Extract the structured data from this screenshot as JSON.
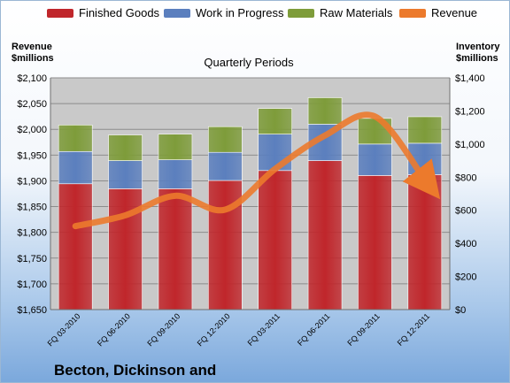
{
  "legend": [
    {
      "label": "Finished Goods",
      "color": "#c0262b"
    },
    {
      "label": "Work in Progress",
      "color": "#5b7fbe"
    },
    {
      "label": "Raw Materials",
      "color": "#7e9c3a"
    },
    {
      "label": "Revenue",
      "color": "#ec7a2c"
    }
  ],
  "left_axis_title": [
    "Revenue",
    "$millions"
  ],
  "right_axis_title": [
    "Inventory",
    "$millions"
  ],
  "chart_title": "Quarterly Periods",
  "footer_title": "Becton, Dickinson and",
  "chart_data": {
    "type": "bar",
    "subtype": "stacked-bar with line overlay",
    "title": "Quarterly Periods",
    "categories": [
      "FQ 03-2010",
      "FQ 06-2010",
      "FQ 09-2010",
      "FQ 12-2010",
      "FQ 03-2011",
      "FQ 06-2011",
      "FQ 09-2011",
      "FQ 12-2011"
    ],
    "series": [
      {
        "name": "Finished Goods",
        "axis": "right",
        "color": "#c0262b",
        "values": [
          760,
          730,
          730,
          780,
          840,
          900,
          810,
          815
        ]
      },
      {
        "name": "Work in Progress",
        "axis": "right",
        "color": "#5b7fbe",
        "values": [
          195,
          170,
          175,
          170,
          220,
          220,
          190,
          190
        ]
      },
      {
        "name": "Raw Materials",
        "axis": "right",
        "color": "#7e9c3a",
        "values": [
          160,
          155,
          155,
          155,
          155,
          160,
          155,
          160
        ]
      },
      {
        "name": "Revenue",
        "axis": "left",
        "type": "line",
        "color": "#ec7a2c",
        "values": [
          1812,
          1833,
          1871,
          1844,
          1923,
          1988,
          2025,
          1902
        ]
      }
    ],
    "left_axis": {
      "ylim": [
        1650,
        2100
      ],
      "ticks": [
        "$1,650",
        "$1,700",
        "$1,750",
        "$1,800",
        "$1,850",
        "$1,900",
        "$1,950",
        "$2,000",
        "$2,050",
        "$2,100"
      ]
    },
    "right_axis": {
      "ylim": [
        0,
        1400
      ],
      "ticks": [
        "$0",
        "$200",
        "$400",
        "$600",
        "$800",
        "$1,000",
        "$1,200",
        "$1,400"
      ]
    },
    "grid": true,
    "legend_position": "top"
  }
}
